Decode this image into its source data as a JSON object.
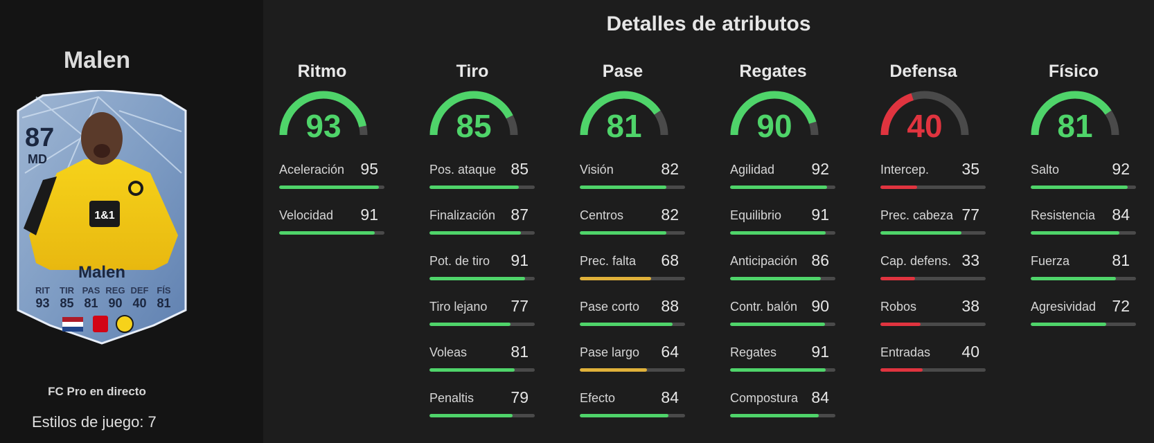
{
  "player": {
    "name": "Malen",
    "card": {
      "rating": "87",
      "position": "MD",
      "name": "Malen",
      "stat_labels": [
        "RIT",
        "TIR",
        "PAS",
        "REG",
        "DEF",
        "FÍS"
      ],
      "stat_values": [
        "93",
        "85",
        "81",
        "90",
        "40",
        "81"
      ],
      "sponsor": "1&1"
    },
    "version": "FC Pro en directo",
    "playstyles": "Estilos de juego: 7"
  },
  "title": "Detalles de atributos",
  "colors": {
    "green": "#4fd46a",
    "yellow": "#e0b13a",
    "red": "#e0343f",
    "track": "#4a4a4a",
    "panel": "#1d1d1d",
    "left_panel": "#141414"
  },
  "categories": [
    {
      "name": "Ritmo",
      "value": 93,
      "value_text": "93",
      "color": "#4fd46a",
      "stats": [
        {
          "label": "Aceleración",
          "value": 95,
          "value_text": "95",
          "color": "#4fd46a"
        },
        {
          "label": "Velocidad",
          "value": 91,
          "value_text": "91",
          "color": "#4fd46a"
        }
      ]
    },
    {
      "name": "Tiro",
      "value": 85,
      "value_text": "85",
      "color": "#4fd46a",
      "stats": [
        {
          "label": "Pos. ataque",
          "value": 85,
          "value_text": "85",
          "color": "#4fd46a"
        },
        {
          "label": "Finalización",
          "value": 87,
          "value_text": "87",
          "color": "#4fd46a"
        },
        {
          "label": "Pot. de tiro",
          "value": 91,
          "value_text": "91",
          "color": "#4fd46a"
        },
        {
          "label": "Tiro lejano",
          "value": 77,
          "value_text": "77",
          "color": "#4fd46a"
        },
        {
          "label": "Voleas",
          "value": 81,
          "value_text": "81",
          "color": "#4fd46a"
        },
        {
          "label": "Penaltis",
          "value": 79,
          "value_text": "79",
          "color": "#4fd46a"
        }
      ]
    },
    {
      "name": "Pase",
      "value": 81,
      "value_text": "81",
      "color": "#4fd46a",
      "stats": [
        {
          "label": "Visión",
          "value": 82,
          "value_text": "82",
          "color": "#4fd46a"
        },
        {
          "label": "Centros",
          "value": 82,
          "value_text": "82",
          "color": "#4fd46a"
        },
        {
          "label": "Prec. falta",
          "value": 68,
          "value_text": "68",
          "color": "#e0b13a"
        },
        {
          "label": "Pase corto",
          "value": 88,
          "value_text": "88",
          "color": "#4fd46a"
        },
        {
          "label": "Pase largo",
          "value": 64,
          "value_text": "64",
          "color": "#e0b13a"
        },
        {
          "label": "Efecto",
          "value": 84,
          "value_text": "84",
          "color": "#4fd46a"
        }
      ]
    },
    {
      "name": "Regates",
      "value": 90,
      "value_text": "90",
      "color": "#4fd46a",
      "stats": [
        {
          "label": "Agilidad",
          "value": 92,
          "value_text": "92",
          "color": "#4fd46a"
        },
        {
          "label": "Equilibrio",
          "value": 91,
          "value_text": "91",
          "color": "#4fd46a"
        },
        {
          "label": "Anticipación",
          "value": 86,
          "value_text": "86",
          "color": "#4fd46a"
        },
        {
          "label": "Contr. balón",
          "value": 90,
          "value_text": "90",
          "color": "#4fd46a"
        },
        {
          "label": "Regates",
          "value": 91,
          "value_text": "91",
          "color": "#4fd46a"
        },
        {
          "label": "Compostura",
          "value": 84,
          "value_text": "84",
          "color": "#4fd46a"
        }
      ]
    },
    {
      "name": "Defensa",
      "value": 40,
      "value_text": "40",
      "color": "#e0343f",
      "stats": [
        {
          "label": "Intercep.",
          "value": 35,
          "value_text": "35",
          "color": "#e0343f"
        },
        {
          "label": "Prec. cabeza",
          "value": 77,
          "value_text": "77",
          "color": "#4fd46a"
        },
        {
          "label": "Cap. defens.",
          "value": 33,
          "value_text": "33",
          "color": "#e0343f"
        },
        {
          "label": "Robos",
          "value": 38,
          "value_text": "38",
          "color": "#e0343f"
        },
        {
          "label": "Entradas",
          "value": 40,
          "value_text": "40",
          "color": "#e0343f"
        }
      ]
    },
    {
      "name": "Físico",
      "value": 81,
      "value_text": "81",
      "color": "#4fd46a",
      "stats": [
        {
          "label": "Salto",
          "value": 92,
          "value_text": "92",
          "color": "#4fd46a"
        },
        {
          "label": "Resistencia",
          "value": 84,
          "value_text": "84",
          "color": "#4fd46a"
        },
        {
          "label": "Fuerza",
          "value": 81,
          "value_text": "81",
          "color": "#4fd46a"
        },
        {
          "label": "Agresividad",
          "value": 72,
          "value_text": "72",
          "color": "#4fd46a"
        }
      ]
    }
  ]
}
